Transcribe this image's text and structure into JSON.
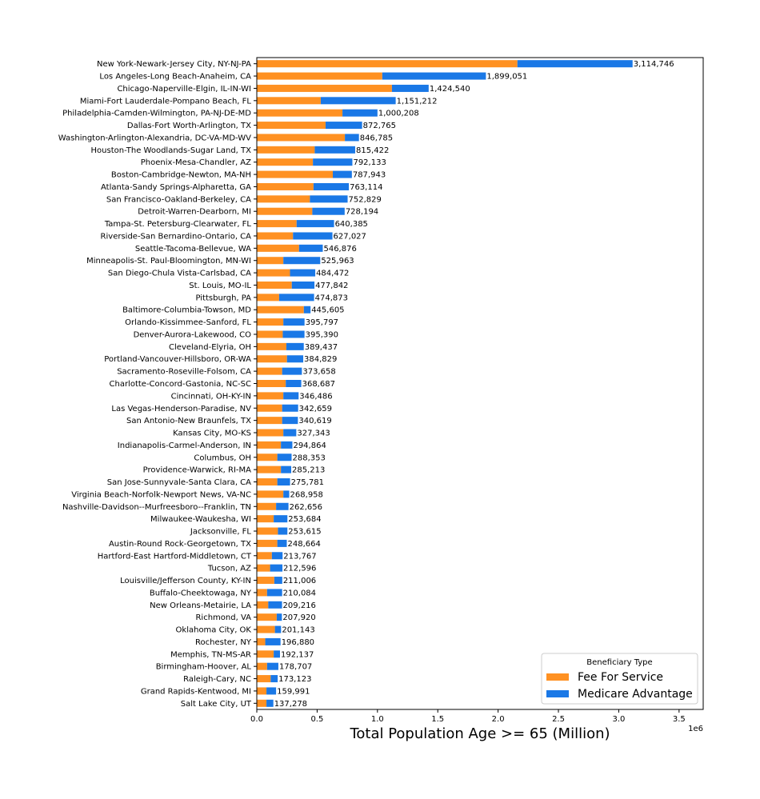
{
  "chart_data": {
    "type": "bar",
    "orientation": "horizontal",
    "stacked": true,
    "xlabel": "Total Population Age >= 65 (Million)",
    "x_offset_text": "1e6",
    "xlim": [
      0,
      3700000
    ],
    "x_ticks": [
      0,
      500000,
      1000000,
      1500000,
      2000000,
      2500000,
      3000000,
      3500000
    ],
    "x_tick_labels": [
      "0.0",
      "0.5",
      "1.0",
      "1.5",
      "2.0",
      "2.5",
      "3.0",
      "3.5"
    ],
    "grid": false,
    "legend": {
      "title": "Beneficiary Type",
      "position": "lower-right"
    },
    "categories": [
      "New York-Newark-Jersey City, NY-NJ-PA",
      "Los Angeles-Long Beach-Anaheim, CA",
      "Chicago-Naperville-Elgin, IL-IN-WI",
      "Miami-Fort Lauderdale-Pompano Beach, FL",
      "Philadelphia-Camden-Wilmington, PA-NJ-DE-MD",
      "Dallas-Fort Worth-Arlington, TX",
      "Washington-Arlington-Alexandria, DC-VA-MD-WV",
      "Houston-The Woodlands-Sugar Land, TX",
      "Phoenix-Mesa-Chandler, AZ",
      "Boston-Cambridge-Newton, MA-NH",
      "Atlanta-Sandy Springs-Alpharetta, GA",
      "San Francisco-Oakland-Berkeley, CA",
      "Detroit-Warren-Dearborn, MI",
      "Tampa-St. Petersburg-Clearwater, FL",
      "Riverside-San Bernardino-Ontario, CA",
      "Seattle-Tacoma-Bellevue, WA",
      "Minneapolis-St. Paul-Bloomington, MN-WI",
      "San Diego-Chula Vista-Carlsbad, CA",
      "St. Louis, MO-IL",
      "Pittsburgh, PA",
      "Baltimore-Columbia-Towson, MD",
      "Orlando-Kissimmee-Sanford, FL",
      "Denver-Aurora-Lakewood, CO",
      "Cleveland-Elyria, OH",
      "Portland-Vancouver-Hillsboro, OR-WA",
      "Sacramento-Roseville-Folsom, CA",
      "Charlotte-Concord-Gastonia, NC-SC",
      "Cincinnati, OH-KY-IN",
      "Las Vegas-Henderson-Paradise, NV",
      "San Antonio-New Braunfels, TX",
      "Kansas City, MO-KS",
      "Indianapolis-Carmel-Anderson, IN",
      "Columbus, OH",
      "Providence-Warwick, RI-MA",
      "San Jose-Sunnyvale-Santa Clara, CA",
      "Virginia Beach-Norfolk-Newport News, VA-NC",
      "Nashville-Davidson--Murfreesboro--Franklin, TN",
      "Milwaukee-Waukesha, WI",
      "Jacksonville, FL",
      "Austin-Round Rock-Georgetown, TX",
      "Hartford-East Hartford-Middletown, CT",
      "Tucson, AZ",
      "Louisville/Jefferson County, KY-IN",
      "Buffalo-Cheektowaga, NY",
      "New Orleans-Metairie, LA",
      "Richmond, VA",
      "Oklahoma City, OK",
      "Rochester, NY",
      "Memphis, TN-MS-AR",
      "Birmingham-Hoover, AL",
      "Raleigh-Cary, NC",
      "Grand Rapids-Kentwood, MI",
      "Salt Lake City, UT"
    ],
    "series": [
      {
        "name": "Fee For Service",
        "color": "#ff9122",
        "values": [
          2160000,
          1040000,
          1120000,
          530000,
          710000,
          570000,
          730000,
          480000,
          465000,
          630000,
          470000,
          440000,
          460000,
          330000,
          300000,
          350000,
          220000,
          275000,
          290000,
          185000,
          390000,
          220000,
          215000,
          245000,
          250000,
          210000,
          240000,
          220000,
          210000,
          210000,
          220000,
          200000,
          170000,
          200000,
          170000,
          220000,
          160000,
          140000,
          175000,
          170000,
          125000,
          110000,
          145000,
          85000,
          95000,
          165000,
          150000,
          70000,
          140000,
          85000,
          115000,
          80000,
          80000
        ]
      },
      {
        "name": "Medicare Advantage",
        "color": "#1a78e6",
        "values": [
          954746,
          859051,
          304540,
          621212,
          290208,
          302765,
          116785,
          335422,
          327133,
          157943,
          293114,
          312829,
          268194,
          310385,
          327027,
          196876,
          305963,
          209472,
          187842,
          289873,
          55605,
          175797,
          180390,
          144437,
          134829,
          163658,
          128687,
          126486,
          132659,
          130619,
          107343,
          94864,
          118353,
          85213,
          105781,
          48958,
          102656,
          113684,
          78615,
          78664,
          88767,
          102596,
          66006,
          125084,
          114216,
          42920,
          51143,
          126880,
          52137,
          93707,
          58123,
          79991,
          57278
        ]
      }
    ],
    "totals": [
      3114746,
      1899051,
      1424540,
      1151212,
      1000208,
      872765,
      846785,
      815422,
      792133,
      787943,
      763114,
      752829,
      728194,
      640385,
      627027,
      546876,
      525963,
      484472,
      477842,
      474873,
      445605,
      395797,
      395390,
      389437,
      384829,
      373658,
      368687,
      346486,
      342659,
      340619,
      327343,
      294864,
      288353,
      285213,
      275781,
      268958,
      262656,
      253684,
      253615,
      248664,
      213767,
      212596,
      211006,
      210084,
      209216,
      207920,
      201143,
      196880,
      192137,
      178707,
      173123,
      159991,
      137278
    ],
    "total_labels": [
      "3,114,746",
      "1,899,051",
      "1,424,540",
      "1,151,212",
      "1,000,208",
      "872,765",
      "846,785",
      "815,422",
      "792,133",
      "787,943",
      "763,114",
      "752,829",
      "728,194",
      "640,385",
      "627,027",
      "546,876",
      "525,963",
      "484,472",
      "477,842",
      "474,873",
      "445,605",
      "395,797",
      "395,390",
      "389,437",
      "384,829",
      "373,658",
      "368,687",
      "346,486",
      "342,659",
      "340,619",
      "327,343",
      "294,864",
      "288,353",
      "285,213",
      "275,781",
      "268,958",
      "262,656",
      "253,684",
      "253,615",
      "248,664",
      "213,767",
      "212,596",
      "211,006",
      "210,084",
      "209,216",
      "207,920",
      "201,143",
      "196,880",
      "192,137",
      "178,707",
      "173,123",
      "159,991",
      "137,278"
    ]
  }
}
